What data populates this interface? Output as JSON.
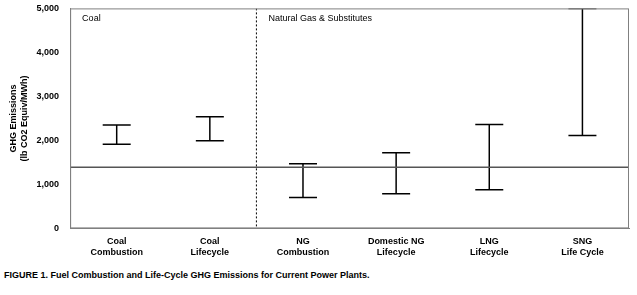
{
  "chart_data": {
    "type": "range",
    "y_label": "GHG Emissions\n(lb CO2 Equiv/MWh)",
    "caption": "FIGURE 1.  Fuel Combustion and Life-Cycle GHG Emissions for Current Power Plants.",
    "categories": [
      "Coal\nCombustion",
      "Coal\nLifecycle",
      "NG\nCombustion",
      "Domestic NG\nLifecycle",
      "LNG\nLifecycle",
      "SNG\nLife Cycle"
    ],
    "values": [
      [
        1910,
        2350
      ],
      [
        1990,
        2540
      ],
      [
        700,
        1470
      ],
      [
        790,
        1720
      ],
      [
        880,
        2360
      ],
      [
        2110,
        5000
      ]
    ],
    "color": "#000000",
    "hline": 1390,
    "groups": [
      {
        "label": "Coal",
        "categories": 2
      },
      {
        "label": "Natural Gas & Substitutes",
        "categories": 4
      }
    ],
    "ylim": [
      0,
      5000
    ],
    "yticks": [
      0,
      {
        "value": 1000,
        "label": "1,000"
      },
      {
        "value": 2000,
        "label": "2,000"
      },
      {
        "value": 3000,
        "label": "3,000"
      },
      {
        "value": 4000,
        "label": "4,000"
      },
      {
        "value": 5000,
        "label": "5,000"
      }
    ],
    "grid": false
  }
}
